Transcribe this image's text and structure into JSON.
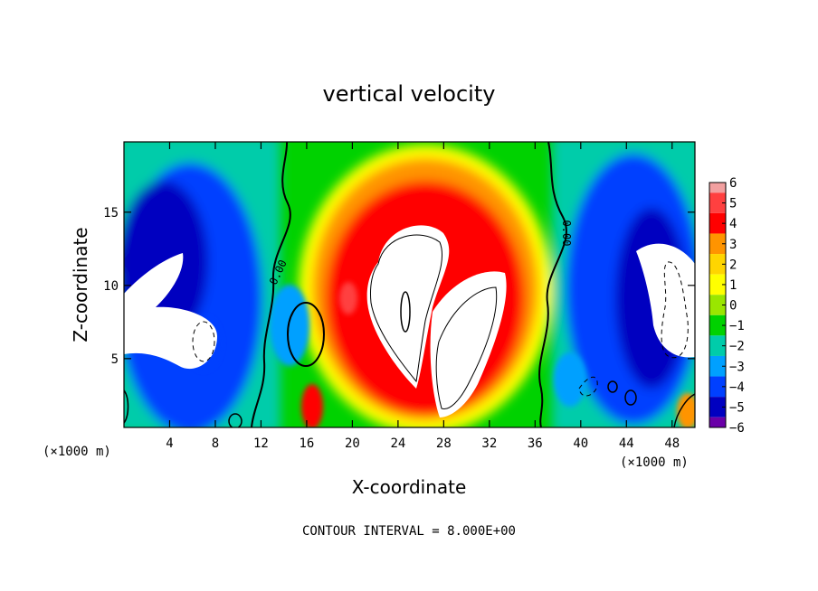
{
  "chart_data": {
    "type": "heatmap",
    "title": "vertical velocity",
    "xlabel": "X-coordinate",
    "ylabel": "Z-coordinate",
    "x_unit": "(×1000 m)",
    "xlim": [
      0,
      50
    ],
    "ylim": [
      0.3,
      19.8
    ],
    "x_ticks": [
      4,
      8,
      12,
      16,
      20,
      24,
      28,
      32,
      36,
      40,
      44,
      48
    ],
    "y_ticks": [
      5,
      10,
      15
    ],
    "colorbar": {
      "ticks": [
        6,
        5,
        4,
        3,
        2,
        1,
        0,
        -1,
        -2,
        -3,
        -4,
        -5,
        -6
      ],
      "colors": [
        "#f2a0a0",
        "#ff4040",
        "#ff0000",
        "#ff9400",
        "#ffd500",
        "#ffff00",
        "#9ae600",
        "#00d200",
        "#00ccaa",
        "#00a0ff",
        "#0040ff",
        "#0000c0",
        "#6a00a8"
      ]
    },
    "contour_labels": [
      "0.00",
      "0.00"
    ],
    "footer": "CONTOUR INTERVAL = 8.000E+00"
  }
}
